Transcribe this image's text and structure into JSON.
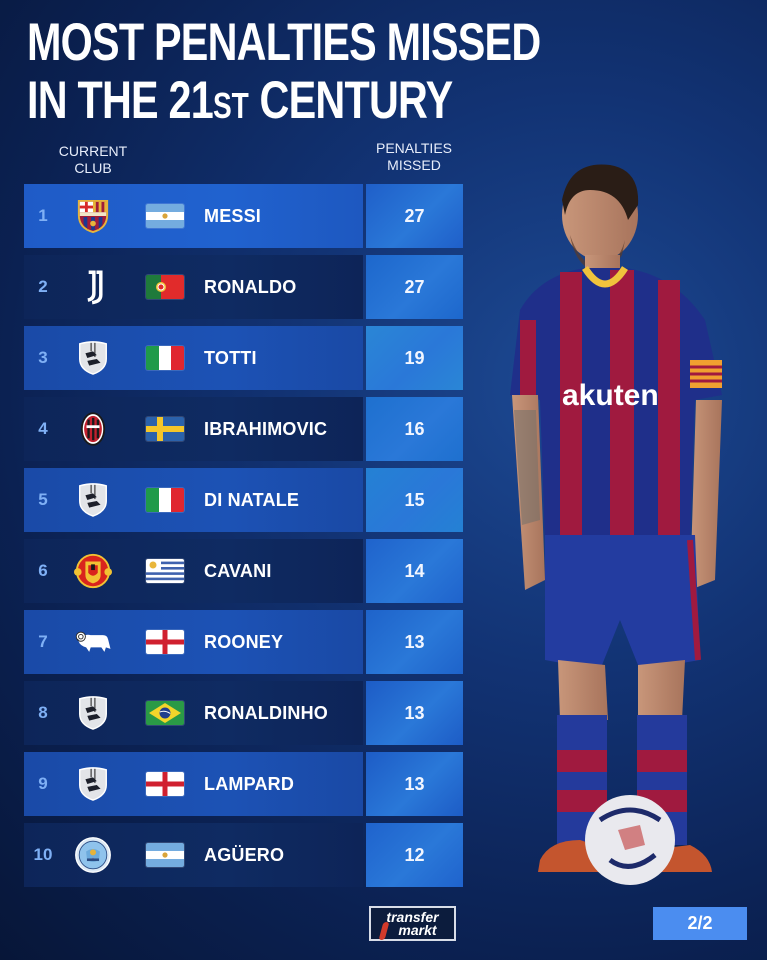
{
  "title": {
    "line1": "MOST PENALTIES MISSED",
    "line2_prefix": "IN THE 21",
    "line2_sup": "ST",
    "line2_suffix": " CENTURY"
  },
  "columns": {
    "club_line1": "CURRENT",
    "club_line2": "CLUB",
    "penalties_line1": "PENALTIES",
    "penalties_line2": "MISSED"
  },
  "rows": [
    {
      "rank": "1",
      "club": "Barcelona",
      "club_icon": "barcelona-crest-icon",
      "flag": "argentina",
      "name": "MESSI",
      "missed": "27"
    },
    {
      "rank": "2",
      "club": "Juventus",
      "club_icon": "juventus-crest-icon",
      "flag": "portugal",
      "name": "RONALDO",
      "missed": "27"
    },
    {
      "rank": "3",
      "club": "Retired",
      "club_icon": "retired-boots-icon",
      "flag": "italy",
      "name": "TOTTI",
      "missed": "19"
    },
    {
      "rank": "4",
      "club": "AC Milan",
      "club_icon": "ac-milan-crest-icon",
      "flag": "sweden",
      "name": "IBRAHIMOVIC",
      "missed": "16"
    },
    {
      "rank": "5",
      "club": "Retired",
      "club_icon": "retired-boots-icon",
      "flag": "italy",
      "name": "DI NATALE",
      "missed": "15"
    },
    {
      "rank": "6",
      "club": "Manchester United",
      "club_icon": "man-united-crest-icon",
      "flag": "uruguay",
      "name": "CAVANI",
      "missed": "14"
    },
    {
      "rank": "7",
      "club": "Derby County",
      "club_icon": "derby-ram-icon",
      "flag": "england",
      "name": "ROONEY",
      "missed": "13"
    },
    {
      "rank": "8",
      "club": "Retired",
      "club_icon": "retired-boots-icon",
      "flag": "brazil",
      "name": "RONALDINHO",
      "missed": "13"
    },
    {
      "rank": "9",
      "club": "Retired",
      "club_icon": "retired-boots-icon",
      "flag": "england",
      "name": "LAMPARD",
      "missed": "13"
    },
    {
      "rank": "10",
      "club": "Manchester City",
      "club_icon": "man-city-crest-icon",
      "flag": "argentina",
      "name": "AGÜERO",
      "missed": "12"
    }
  ],
  "value_cell_colors": [
    "#1f5fc9",
    "#1d67cc",
    "#2a86d6",
    "#1e70cf",
    "#2481d4",
    "#1f63cc",
    "#1e63ca",
    "#1d5cc6",
    "#1d5cc6",
    "#1f63cd"
  ],
  "logo": {
    "line1": "transfer",
    "line2": "markt"
  },
  "page_indicator": "2/2",
  "colors": {
    "background": "#0b2152",
    "row_light": "#1c52b5",
    "row_dark": "#0f2b62",
    "rank_text": "#7fb0f5",
    "badge": "#4b8df0"
  }
}
